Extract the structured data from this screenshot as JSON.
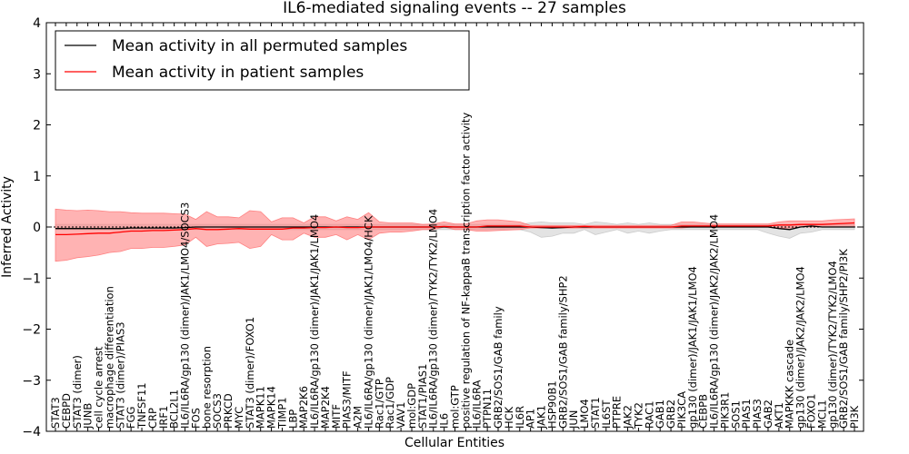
{
  "chart_data": {
    "type": "line",
    "title": "IL6-mediated signaling events -- 27 samples",
    "xlabel": "Cellular Entities",
    "ylabel": "Inferred Activity",
    "ylim": [
      -4,
      4
    ],
    "yticks": [
      -4,
      -3,
      -2,
      -1,
      0,
      1,
      2,
      3,
      4
    ],
    "legend_position": "top-left",
    "categories": [
      "STAT3",
      "CEBPD",
      "STAT3 (dimer)",
      "JUNB",
      "cell cycle arrest",
      "macrophage differentiation",
      "STAT3 (dimer)/PIAS3",
      "FGG",
      "TNFSF11",
      "CRP",
      "IRF1",
      "BCL2L1",
      "IL6/IL6RA/gp130 (dimer)/JAK1/LMO4/SOCS3",
      "FOS",
      "bone resorption",
      "SOCS3",
      "PRKCD",
      "MYC",
      "STAT3 (dimer)/FOXO1",
      "MAPK11",
      "MAPK14",
      "TIMP1",
      "LBP",
      "MAP2K6",
      "IL6/IL6RA/gp130 (dimer)/JAK1/JAK1/LMO4",
      "MAP2K4",
      "MITF",
      "PIAS3/MITF",
      "A2M",
      "IL6/IL6RA/gp130 (dimer)/JAK1/LMO4/HCK",
      "Rac1/GTP",
      "Rac1/GDP",
      "VAV1",
      "mol:GDP",
      "STAT1/PIAS1",
      "IL6/IL6RA/gp130 (dimer)/TYK2/TYK2/LMO4",
      "IL6",
      "mol:GTP",
      "positive regulation of NF-kappaB transcription factor activity",
      "IL6/IL6RA",
      "PTPN11",
      "GRB2/SOS1/GAB family",
      "HCK",
      "IL6R",
      "AP1",
      "JAK1",
      "HSP90B1",
      "GRB2/SOS1/GAB family/SHP2",
      "JUN",
      "LMO4",
      "STAT1",
      "IL6ST",
      "PTPRE",
      "JAK2",
      "TYK2",
      "RAC1",
      "GAB1",
      "GRB2",
      "PIK3CA",
      "gp130 (dimer)/JAK1/JAK1/LMO4",
      "CEBPB",
      "IL6/IL6RA/gp130 (dimer)/JAK2/JAK2/LMO4",
      "PIK3R1",
      "SOS1",
      "PIAS1",
      "PIAS3",
      "GAB2",
      "AKT1",
      "MAPKKK cascade",
      "gp130 (dimer)/JAK2/JAK2/LMO4",
      "FOXO1",
      "MCL1",
      "gp130 (dimer)/TYK2/TYK2/LMO4",
      "GRB2/SOS1/GAB family/SHP2/PI3K",
      "PI3K"
    ],
    "series": [
      {
        "name": "Mean activity in all permuted samples",
        "color": "#000000",
        "band_color": "#cccccc",
        "values": [
          -0.03,
          -0.03,
          -0.03,
          -0.03,
          -0.03,
          -0.03,
          -0.03,
          -0.02,
          -0.02,
          -0.02,
          -0.02,
          -0.02,
          -0.01,
          0.0,
          0.0,
          0.0,
          0.0,
          0.0,
          0.0,
          0.0,
          0.0,
          0.0,
          0.0,
          0.0,
          0.0,
          0.0,
          0.0,
          0.0,
          0.0,
          0.0,
          0.0,
          0.0,
          0.0,
          0.0,
          0.0,
          0.0,
          0.0,
          0.0,
          0.0,
          0.0,
          0.0,
          0.0,
          0.0,
          0.0,
          0.0,
          -0.01,
          -0.02,
          -0.01,
          0.0,
          0.0,
          0.0,
          0.0,
          0.0,
          0.0,
          0.0,
          0.0,
          0.0,
          0.0,
          0.0,
          0.0,
          0.0,
          0.0,
          0.0,
          0.0,
          0.0,
          0.0,
          0.0,
          -0.03,
          -0.05,
          0.0,
          0.02,
          0.0,
          0.0,
          0.0,
          0.0
        ],
        "lower": [
          -0.05,
          -0.05,
          -0.05,
          -0.05,
          -0.05,
          -0.05,
          -0.05,
          -0.05,
          -0.05,
          -0.05,
          -0.05,
          -0.05,
          -0.05,
          -0.05,
          -0.05,
          -0.05,
          -0.05,
          -0.05,
          -0.05,
          -0.05,
          -0.05,
          -0.05,
          -0.05,
          -0.05,
          -0.05,
          -0.05,
          -0.05,
          -0.05,
          -0.05,
          -0.05,
          -0.05,
          -0.05,
          -0.05,
          -0.05,
          -0.05,
          -0.05,
          -0.05,
          -0.05,
          -0.05,
          -0.05,
          -0.05,
          -0.05,
          -0.05,
          -0.05,
          -0.1,
          -0.2,
          -0.18,
          -0.12,
          -0.12,
          -0.05,
          -0.15,
          -0.1,
          -0.05,
          -0.12,
          -0.08,
          -0.12,
          -0.08,
          -0.05,
          -0.05,
          -0.05,
          -0.05,
          -0.05,
          -0.05,
          -0.05,
          -0.05,
          -0.05,
          -0.12,
          -0.18,
          -0.22,
          -0.12,
          -0.1,
          -0.05,
          -0.05,
          -0.05,
          -0.05
        ],
        "upper": [
          0.05,
          0.05,
          0.05,
          0.05,
          0.05,
          0.05,
          0.05,
          0.05,
          0.05,
          0.05,
          0.05,
          0.05,
          0.05,
          0.05,
          0.05,
          0.05,
          0.05,
          0.05,
          0.05,
          0.05,
          0.05,
          0.05,
          0.05,
          0.05,
          0.05,
          0.05,
          0.05,
          0.05,
          0.05,
          0.05,
          0.05,
          0.05,
          0.05,
          0.05,
          0.05,
          0.05,
          0.05,
          0.05,
          0.05,
          0.05,
          0.05,
          0.05,
          0.05,
          0.05,
          0.08,
          0.1,
          0.08,
          0.08,
          0.08,
          0.05,
          0.1,
          0.08,
          0.05,
          0.08,
          0.05,
          0.08,
          0.05,
          0.05,
          0.05,
          0.05,
          0.05,
          0.05,
          0.05,
          0.05,
          0.05,
          0.05,
          0.05,
          0.05,
          0.05,
          0.05,
          0.05,
          0.05,
          0.05,
          0.05,
          0.05
        ]
      },
      {
        "name": "Mean activity in patient samples",
        "color": "#ff0000",
        "band_color": "#ff8080",
        "values": [
          -0.15,
          -0.15,
          -0.14,
          -0.13,
          -0.12,
          -0.12,
          -0.1,
          -0.08,
          -0.08,
          -0.07,
          -0.07,
          -0.06,
          -0.05,
          -0.03,
          -0.05,
          -0.05,
          -0.04,
          -0.03,
          -0.04,
          -0.04,
          -0.04,
          -0.04,
          -0.02,
          -0.02,
          -0.01,
          -0.01,
          0.0,
          -0.01,
          -0.01,
          0.0,
          0.0,
          0.0,
          0.0,
          0.0,
          0.0,
          0.0,
          0.01,
          0.0,
          0.0,
          0.0,
          0.02,
          0.02,
          0.02,
          0.02,
          0.0,
          0.0,
          0.0,
          0.0,
          0.0,
          0.01,
          0.0,
          0.0,
          0.0,
          0.0,
          0.0,
          0.0,
          0.0,
          0.0,
          0.02,
          0.02,
          0.02,
          0.02,
          0.02,
          0.02,
          0.02,
          0.02,
          0.02,
          0.04,
          0.04,
          0.05,
          0.05,
          0.05,
          0.06,
          0.07,
          0.08
        ],
        "lower": [
          -0.67,
          -0.65,
          -0.6,
          -0.58,
          -0.55,
          -0.5,
          -0.48,
          -0.42,
          -0.42,
          -0.4,
          -0.4,
          -0.38,
          -0.35,
          -0.2,
          -0.38,
          -0.33,
          -0.32,
          -0.3,
          -0.42,
          -0.38,
          -0.15,
          -0.25,
          -0.25,
          -0.12,
          -0.2,
          -0.2,
          -0.15,
          -0.25,
          -0.15,
          -0.25,
          -0.12,
          -0.1,
          -0.1,
          -0.08,
          -0.05,
          -0.05,
          0.0,
          -0.05,
          -0.05,
          -0.08,
          -0.08,
          -0.07,
          -0.06,
          -0.05,
          -0.02,
          -0.02,
          -0.02,
          -0.02,
          -0.02,
          -0.02,
          -0.02,
          -0.02,
          -0.02,
          -0.02,
          -0.02,
          -0.02,
          -0.02,
          -0.02,
          -0.02,
          0.0,
          0.0,
          0.0,
          0.0,
          0.0,
          0.0,
          0.0,
          0.0,
          -0.02,
          -0.02,
          0.0,
          0.0,
          0.0,
          0.0,
          0.0,
          0.0
        ],
        "upper": [
          0.35,
          0.33,
          0.32,
          0.33,
          0.32,
          0.3,
          0.3,
          0.28,
          0.27,
          0.27,
          0.27,
          0.26,
          0.25,
          0.15,
          0.3,
          0.2,
          0.2,
          0.18,
          0.32,
          0.3,
          0.1,
          0.18,
          0.18,
          0.08,
          0.2,
          0.2,
          0.12,
          0.2,
          0.15,
          0.28,
          0.1,
          0.08,
          0.08,
          0.08,
          0.05,
          0.06,
          0.1,
          0.06,
          0.06,
          0.12,
          0.14,
          0.14,
          0.12,
          0.1,
          0.03,
          0.03,
          0.03,
          0.03,
          0.03,
          0.03,
          0.03,
          0.03,
          0.03,
          0.03,
          0.03,
          0.03,
          0.03,
          0.03,
          0.1,
          0.1,
          0.08,
          0.06,
          0.06,
          0.06,
          0.06,
          0.06,
          0.06,
          0.1,
          0.12,
          0.12,
          0.12,
          0.12,
          0.14,
          0.15,
          0.16
        ]
      }
    ]
  }
}
